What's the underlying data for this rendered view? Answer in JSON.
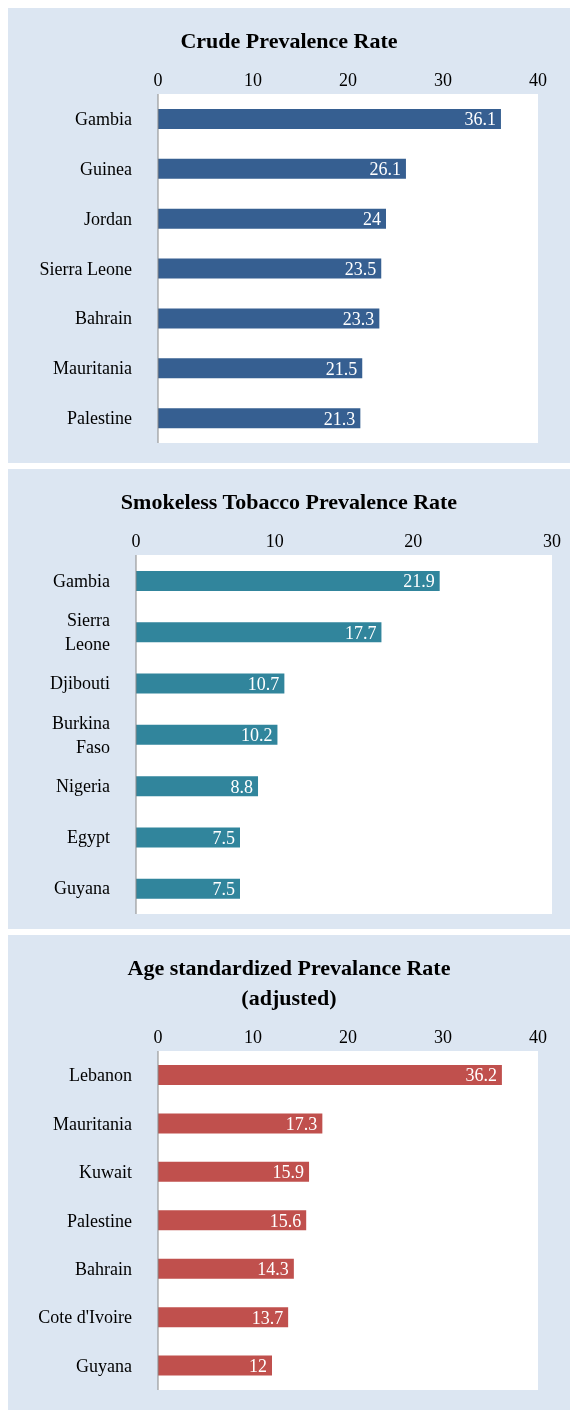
{
  "chart_data": [
    {
      "type": "bar",
      "orientation": "horizontal",
      "title": "Crude Prevalence Rate",
      "categories": [
        "Gambia",
        "Guinea",
        "Jordan",
        "Sierra Leone",
        "Bahrain",
        "Mauritania",
        "Palestine"
      ],
      "values": [
        36.1,
        26.1,
        24,
        23.5,
        23.3,
        21.5,
        21.3
      ],
      "color": "#365f91",
      "xlim": [
        0,
        40
      ],
      "xticks": [
        0,
        10,
        20,
        30,
        40
      ],
      "data_labels": true,
      "grid": false,
      "legend": false
    },
    {
      "type": "bar",
      "orientation": "horizontal",
      "title": "Smokeless Tobacco Prevalence Rate",
      "categories": [
        "Gambia",
        "Sierra Leone",
        "Djibouti",
        "Burkina Faso",
        "Nigeria",
        "Egypt",
        "Guyana"
      ],
      "values": [
        21.9,
        17.7,
        10.7,
        10.2,
        8.8,
        7.5,
        7.5
      ],
      "color": "#31859c",
      "xlim": [
        0,
        30
      ],
      "xticks": [
        0,
        10,
        20,
        30
      ],
      "data_labels": true,
      "grid": false,
      "legend": false
    },
    {
      "type": "bar",
      "orientation": "horizontal",
      "title": "Age standardized Prevalance Rate (adjusted)",
      "categories": [
        "Lebanon",
        "Mauritania",
        "Kuwait",
        "Palestine",
        "Bahrain",
        "Cote d'Ivoire",
        "Guyana"
      ],
      "values": [
        36.2,
        17.3,
        15.9,
        15.6,
        14.3,
        13.7,
        12
      ],
      "color": "#c0504d",
      "xlim": [
        0,
        40
      ],
      "xticks": [
        0,
        10,
        20,
        30,
        40
      ],
      "data_labels": true,
      "grid": false,
      "legend": false
    }
  ]
}
